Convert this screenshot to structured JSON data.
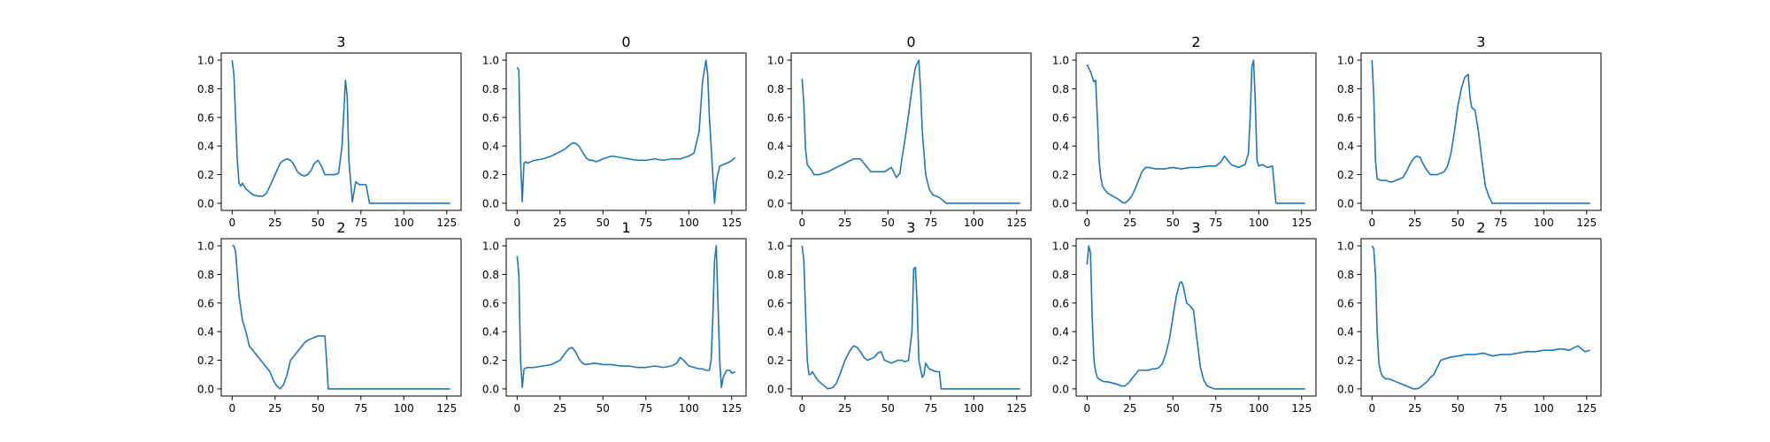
{
  "figure": {
    "line_color": "#1f77b4",
    "frame_color": "#000000",
    "background": "#ffffff"
  },
  "chart_data": [
    {
      "type": "line",
      "title": "3",
      "xlim": [
        -6.35,
        133.35
      ],
      "ylim": [
        -0.05,
        1.05
      ],
      "xticks": [
        0,
        25,
        50,
        75,
        100,
        125
      ],
      "yticks": [
        0.0,
        0.2,
        0.4,
        0.6,
        0.8,
        1.0
      ],
      "x": [
        0,
        1,
        2,
        3,
        4,
        5,
        6,
        8,
        10,
        12,
        15,
        18,
        20,
        22,
        25,
        28,
        30,
        32,
        34,
        36,
        38,
        40,
        42,
        44,
        46,
        48,
        50,
        52,
        54,
        56,
        58,
        60,
        62,
        64,
        66,
        67,
        68,
        70,
        71,
        72,
        74,
        76,
        78,
        80,
        127
      ],
      "y": [
        1.0,
        0.9,
        0.6,
        0.3,
        0.14,
        0.12,
        0.14,
        0.1,
        0.08,
        0.06,
        0.05,
        0.05,
        0.07,
        0.12,
        0.2,
        0.28,
        0.3,
        0.31,
        0.3,
        0.27,
        0.22,
        0.2,
        0.19,
        0.2,
        0.23,
        0.28,
        0.3,
        0.26,
        0.2,
        0.2,
        0.2,
        0.2,
        0.21,
        0.4,
        0.86,
        0.75,
        0.3,
        0.01,
        0.08,
        0.15,
        0.13,
        0.13,
        0.13,
        0.0,
        0.0
      ]
    },
    {
      "type": "line",
      "title": "0",
      "xlim": [
        -6.35,
        133.35
      ],
      "ylim": [
        -0.05,
        1.05
      ],
      "xticks": [
        0,
        25,
        50,
        75,
        100,
        125
      ],
      "yticks": [
        0.0,
        0.2,
        0.4,
        0.6,
        0.8,
        1.0
      ],
      "x": [
        0,
        1,
        2,
        3,
        4,
        5,
        6,
        10,
        15,
        20,
        25,
        28,
        30,
        32,
        34,
        36,
        38,
        40,
        42,
        44,
        46,
        48,
        50,
        55,
        60,
        65,
        70,
        75,
        80,
        85,
        90,
        95,
        100,
        103,
        106,
        108,
        110,
        111,
        112,
        114,
        115,
        116,
        118,
        120,
        124,
        127
      ],
      "y": [
        0.95,
        0.93,
        0.3,
        0.01,
        0.28,
        0.29,
        0.28,
        0.3,
        0.31,
        0.33,
        0.36,
        0.38,
        0.4,
        0.42,
        0.42,
        0.4,
        0.36,
        0.32,
        0.3,
        0.3,
        0.29,
        0.3,
        0.31,
        0.33,
        0.32,
        0.31,
        0.3,
        0.3,
        0.31,
        0.3,
        0.31,
        0.31,
        0.33,
        0.35,
        0.5,
        0.85,
        1.0,
        0.9,
        0.6,
        0.2,
        0.0,
        0.15,
        0.26,
        0.27,
        0.29,
        0.32
      ]
    },
    {
      "type": "line",
      "title": "0",
      "xlim": [
        -6.35,
        133.35
      ],
      "ylim": [
        -0.05,
        1.05
      ],
      "xticks": [
        0,
        25,
        50,
        75,
        100,
        125
      ],
      "yticks": [
        0.0,
        0.2,
        0.4,
        0.6,
        0.8,
        1.0
      ],
      "x": [
        0,
        1,
        2,
        3,
        5,
        7,
        10,
        15,
        20,
        25,
        30,
        34,
        36,
        38,
        40,
        42,
        45,
        48,
        52,
        55,
        57,
        58,
        60,
        62,
        64,
        66,
        68,
        69,
        70,
        72,
        74,
        76,
        80,
        84,
        127
      ],
      "y": [
        0.87,
        0.7,
        0.38,
        0.27,
        0.24,
        0.2,
        0.2,
        0.22,
        0.25,
        0.28,
        0.31,
        0.31,
        0.28,
        0.25,
        0.22,
        0.22,
        0.22,
        0.22,
        0.25,
        0.18,
        0.21,
        0.3,
        0.45,
        0.62,
        0.8,
        0.95,
        1.0,
        0.8,
        0.5,
        0.2,
        0.1,
        0.06,
        0.04,
        0.0,
        0.0
      ]
    },
    {
      "type": "line",
      "title": "2",
      "xlim": [
        -6.35,
        133.35
      ],
      "ylim": [
        -0.05,
        1.05
      ],
      "xticks": [
        0,
        25,
        50,
        75,
        100,
        125
      ],
      "yticks": [
        0.0,
        0.2,
        0.4,
        0.6,
        0.8,
        1.0
      ],
      "x": [
        0,
        2,
        4,
        5,
        6,
        7,
        8,
        9,
        10,
        12,
        15,
        18,
        20,
        22,
        24,
        26,
        28,
        30,
        32,
        34,
        36,
        40,
        45,
        50,
        55,
        60,
        65,
        70,
        75,
        78,
        80,
        82,
        84,
        86,
        88,
        90,
        92,
        94,
        95,
        96,
        97,
        98,
        99,
        100,
        102,
        105,
        108,
        110,
        112,
        115,
        127
      ],
      "y": [
        0.97,
        0.92,
        0.85,
        0.86,
        0.6,
        0.3,
        0.18,
        0.12,
        0.1,
        0.07,
        0.05,
        0.03,
        0.01,
        0.0,
        0.02,
        0.05,
        0.1,
        0.16,
        0.22,
        0.25,
        0.25,
        0.24,
        0.24,
        0.25,
        0.24,
        0.25,
        0.25,
        0.26,
        0.26,
        0.29,
        0.33,
        0.3,
        0.27,
        0.26,
        0.25,
        0.26,
        0.27,
        0.35,
        0.6,
        0.95,
        1.0,
        0.7,
        0.3,
        0.26,
        0.27,
        0.25,
        0.26,
        0.0,
        0.0,
        0.0,
        0.0
      ]
    },
    {
      "type": "line",
      "title": "3",
      "xlim": [
        -6.35,
        133.35
      ],
      "ylim": [
        -0.05,
        1.05
      ],
      "xticks": [
        0,
        25,
        50,
        75,
        100,
        125
      ],
      "yticks": [
        0.0,
        0.2,
        0.4,
        0.6,
        0.8,
        1.0
      ],
      "x": [
        0,
        1,
        2,
        3,
        5,
        8,
        10,
        12,
        14,
        16,
        18,
        20,
        22,
        24,
        26,
        28,
        30,
        32,
        34,
        36,
        38,
        40,
        42,
        44,
        46,
        48,
        50,
        52,
        54,
        56,
        57,
        58,
        60,
        62,
        64,
        66,
        68,
        70,
        127
      ],
      "y": [
        1.0,
        0.75,
        0.3,
        0.17,
        0.16,
        0.16,
        0.15,
        0.15,
        0.16,
        0.17,
        0.18,
        0.22,
        0.27,
        0.31,
        0.33,
        0.32,
        0.27,
        0.23,
        0.2,
        0.2,
        0.2,
        0.21,
        0.22,
        0.26,
        0.35,
        0.5,
        0.68,
        0.8,
        0.88,
        0.9,
        0.75,
        0.67,
        0.65,
        0.5,
        0.3,
        0.12,
        0.05,
        0.0,
        0.0
      ]
    },
    {
      "type": "line",
      "title": "2",
      "xlim": [
        -6.35,
        133.35
      ],
      "ylim": [
        -0.05,
        1.05
      ],
      "xticks": [
        0,
        25,
        50,
        75,
        100,
        125
      ],
      "yticks": [
        0.0,
        0.2,
        0.4,
        0.6,
        0.8,
        1.0
      ],
      "x": [
        0,
        1,
        2,
        4,
        6,
        8,
        10,
        12,
        14,
        16,
        18,
        20,
        22,
        24,
        26,
        27,
        28,
        30,
        32,
        34,
        36,
        38,
        40,
        42,
        44,
        46,
        48,
        50,
        52,
        54,
        55,
        56,
        127
      ],
      "y": [
        1.0,
        1.0,
        0.96,
        0.65,
        0.48,
        0.4,
        0.3,
        0.27,
        0.24,
        0.21,
        0.18,
        0.15,
        0.12,
        0.06,
        0.02,
        0.01,
        0.0,
        0.03,
        0.1,
        0.2,
        0.23,
        0.26,
        0.29,
        0.32,
        0.34,
        0.35,
        0.36,
        0.37,
        0.37,
        0.37,
        0.2,
        0.0,
        0.0
      ]
    },
    {
      "type": "line",
      "title": "1",
      "xlim": [
        -6.35,
        133.35
      ],
      "ylim": [
        -0.05,
        1.05
      ],
      "xticks": [
        0,
        25,
        50,
        75,
        100,
        125
      ],
      "yticks": [
        0.0,
        0.2,
        0.4,
        0.6,
        0.8,
        1.0
      ],
      "x": [
        0,
        1,
        2,
        3,
        4,
        6,
        10,
        15,
        20,
        25,
        28,
        30,
        32,
        34,
        36,
        38,
        40,
        45,
        50,
        55,
        60,
        65,
        70,
        75,
        80,
        85,
        90,
        93,
        95,
        97,
        100,
        103,
        106,
        108,
        110,
        112,
        113,
        114,
        115,
        116,
        117,
        118,
        119,
        120,
        122,
        124,
        125,
        127
      ],
      "y": [
        0.93,
        0.8,
        0.2,
        0.01,
        0.14,
        0.15,
        0.15,
        0.16,
        0.17,
        0.2,
        0.25,
        0.28,
        0.29,
        0.26,
        0.21,
        0.18,
        0.17,
        0.18,
        0.17,
        0.17,
        0.16,
        0.16,
        0.15,
        0.15,
        0.16,
        0.15,
        0.16,
        0.18,
        0.22,
        0.2,
        0.16,
        0.15,
        0.14,
        0.14,
        0.13,
        0.13,
        0.2,
        0.5,
        0.9,
        1.0,
        0.6,
        0.2,
        0.01,
        0.08,
        0.13,
        0.13,
        0.11,
        0.12
      ]
    },
    {
      "type": "line",
      "title": "3",
      "xlim": [
        -6.35,
        133.35
      ],
      "ylim": [
        -0.05,
        1.05
      ],
      "xticks": [
        0,
        25,
        50,
        75,
        100,
        125
      ],
      "yticks": [
        0.0,
        0.2,
        0.4,
        0.6,
        0.8,
        1.0
      ],
      "x": [
        0,
        1,
        2,
        3,
        4,
        5,
        6,
        8,
        10,
        12,
        15,
        18,
        20,
        22,
        25,
        28,
        30,
        32,
        34,
        36,
        38,
        40,
        42,
        44,
        46,
        48,
        50,
        52,
        54,
        56,
        58,
        60,
        62,
        64,
        65,
        66,
        67,
        68,
        70,
        71,
        72,
        74,
        76,
        78,
        80,
        81,
        127
      ],
      "y": [
        1.0,
        0.9,
        0.55,
        0.2,
        0.1,
        0.1,
        0.12,
        0.08,
        0.05,
        0.03,
        0.0,
        0.01,
        0.04,
        0.1,
        0.2,
        0.27,
        0.3,
        0.29,
        0.26,
        0.22,
        0.2,
        0.21,
        0.22,
        0.25,
        0.26,
        0.2,
        0.19,
        0.18,
        0.19,
        0.2,
        0.2,
        0.19,
        0.2,
        0.4,
        0.84,
        0.85,
        0.6,
        0.2,
        0.08,
        0.1,
        0.18,
        0.14,
        0.13,
        0.12,
        0.12,
        0.0,
        0.0
      ]
    },
    {
      "type": "line",
      "title": "3",
      "xlim": [
        -6.35,
        133.35
      ],
      "ylim": [
        -0.05,
        1.05
      ],
      "xticks": [
        0,
        25,
        50,
        75,
        100,
        125
      ],
      "yticks": [
        0.0,
        0.2,
        0.4,
        0.6,
        0.8,
        1.0
      ],
      "x": [
        0,
        1,
        2,
        3,
        4,
        5,
        6,
        8,
        10,
        12,
        15,
        18,
        20,
        22,
        24,
        26,
        28,
        30,
        32,
        34,
        36,
        38,
        40,
        42,
        44,
        46,
        48,
        50,
        52,
        54,
        55,
        56,
        58,
        60,
        62,
        64,
        66,
        68,
        70,
        72,
        74,
        127
      ],
      "y": [
        0.87,
        1.0,
        0.95,
        0.5,
        0.2,
        0.12,
        0.08,
        0.06,
        0.05,
        0.05,
        0.04,
        0.03,
        0.02,
        0.02,
        0.04,
        0.07,
        0.1,
        0.13,
        0.13,
        0.13,
        0.13,
        0.14,
        0.14,
        0.15,
        0.18,
        0.25,
        0.35,
        0.5,
        0.65,
        0.74,
        0.75,
        0.72,
        0.6,
        0.58,
        0.55,
        0.35,
        0.15,
        0.06,
        0.02,
        0.01,
        0.0,
        0.0
      ]
    },
    {
      "type": "line",
      "title": "2",
      "xlim": [
        -6.35,
        133.35
      ],
      "ylim": [
        -0.05,
        1.05
      ],
      "xticks": [
        0,
        25,
        50,
        75,
        100,
        125
      ],
      "yticks": [
        0.0,
        0.2,
        0.4,
        0.6,
        0.8,
        1.0
      ],
      "x": [
        0,
        1,
        2,
        3,
        4,
        5,
        6,
        8,
        10,
        12,
        14,
        16,
        18,
        20,
        22,
        24,
        26,
        28,
        30,
        32,
        34,
        36,
        38,
        40,
        45,
        50,
        55,
        60,
        65,
        70,
        75,
        80,
        85,
        90,
        95,
        100,
        105,
        110,
        115,
        118,
        120,
        122,
        124,
        127
      ],
      "y": [
        1.0,
        0.98,
        0.8,
        0.4,
        0.18,
        0.12,
        0.09,
        0.07,
        0.07,
        0.06,
        0.05,
        0.04,
        0.03,
        0.02,
        0.01,
        0.0,
        0.0,
        0.01,
        0.03,
        0.05,
        0.08,
        0.1,
        0.15,
        0.2,
        0.22,
        0.23,
        0.24,
        0.24,
        0.25,
        0.23,
        0.24,
        0.24,
        0.25,
        0.26,
        0.26,
        0.27,
        0.27,
        0.28,
        0.27,
        0.29,
        0.3,
        0.28,
        0.26,
        0.27
      ]
    }
  ]
}
